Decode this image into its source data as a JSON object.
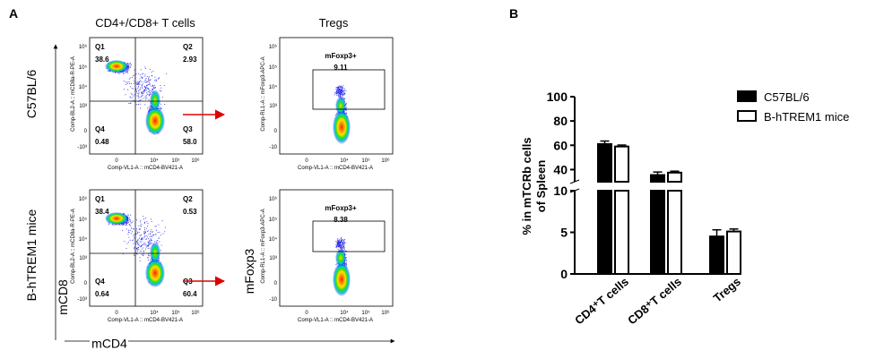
{
  "panel_a": {
    "label": "A",
    "col_titles": [
      "CD4+/CD8+ T cells",
      "Tregs"
    ],
    "row_labels": [
      "C57BL/6",
      "B-hTREM1 mice"
    ],
    "y_axis_title": "mCD8",
    "x_axis_title": "mCD4",
    "treg_y_axis_title": "mFoxp3",
    "cd8_axis_label": "Comp-BL2-A :: mCD8a-R-PE-A",
    "cd4_axis_label": "Comp-VL1-A :: mCD4-BV421-A",
    "foxp3_axis_label": "Comp-RL1-A :: mFoxp3-APC-A",
    "gate_label": "mFoxp3+",
    "quad_names": [
      "Q1",
      "Q2",
      "Q3",
      "Q4"
    ],
    "rows": [
      {
        "q1": "38.6",
        "q2": "2.93",
        "q3": "58.0",
        "q4": "0.48",
        "treg": "9.11"
      },
      {
        "q1": "38.4",
        "q2": "0.53",
        "q3": "60.4",
        "q4": "0.64",
        "treg": "8.38"
      }
    ],
    "cd_ticks_y": [
      "10⁶",
      "10⁵",
      "10⁴",
      "10³",
      "0",
      "-10³"
    ],
    "cd_ticks_x": [
      "0",
      "10⁴",
      "10⁵",
      "10⁶"
    ],
    "treg_ticks_y": [
      "10⁶",
      "10⁵",
      "10⁴",
      "10³",
      "0",
      "-10"
    ],
    "treg_ticks_x": [
      "0",
      "10⁴",
      "10⁵",
      "10⁶"
    ],
    "arrow_color": "#e00000"
  },
  "chart_data": {
    "type": "bar",
    "panel_label": "B",
    "ylabel_lines": [
      "% in mTCRb cells",
      "of Spleen"
    ],
    "categories": [
      "CD4⁺T cells",
      "CD8⁺T cells",
      "Tregs"
    ],
    "series": [
      {
        "name": "C57BL/6",
        "values": [
          61,
          35.5,
          4.5
        ],
        "errors": [
          2.5,
          2.5,
          0.8
        ],
        "fill": "#000000"
      },
      {
        "name": "B-hTREM1 mice",
        "values": [
          59,
          37.5,
          5.1
        ],
        "errors": [
          1.2,
          1.2,
          0.3
        ],
        "fill": "#ffffff"
      }
    ],
    "y_axis": "broken",
    "ylim_lower": [
      0,
      10
    ],
    "ylim_upper": [
      30,
      100
    ],
    "yticks_lower": [
      "0",
      "5",
      "10"
    ],
    "yticks_upper": [
      "40",
      "60",
      "80",
      "100"
    ],
    "legend_position": "top-right",
    "grid": false
  }
}
